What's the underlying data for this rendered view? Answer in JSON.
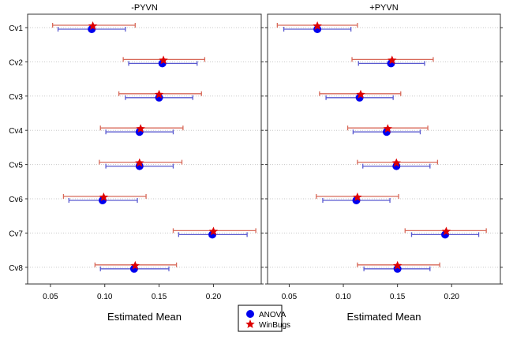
{
  "chart_data": [
    {
      "type": "scatter",
      "title": "-PYVN",
      "xlabel": "Estimated Mean",
      "ylabel": "",
      "xlim": [
        0.029,
        0.244
      ],
      "xticks": [
        "0.05",
        "0.10",
        "0.15",
        "0.20"
      ],
      "categories": [
        "Cv1",
        "Cv2",
        "Cv3",
        "Cv4",
        "Cv5",
        "Cv6",
        "Cv7",
        "Cv8"
      ],
      "grid": "horizontal dotted",
      "series": [
        {
          "name": "ANOVA",
          "marker": "circle",
          "color": "#0000ee",
          "ci_color": "#5a5ad0",
          "mean": [
            0.088,
            0.153,
            0.15,
            0.132,
            0.132,
            0.098,
            0.199,
            0.127
          ],
          "lower": [
            0.057,
            0.122,
            0.119,
            0.101,
            0.101,
            0.067,
            0.168,
            0.096
          ],
          "upper": [
            0.119,
            0.185,
            0.181,
            0.163,
            0.163,
            0.13,
            0.231,
            0.159
          ]
        },
        {
          "name": "WinBugs",
          "marker": "star",
          "color": "#dd0000",
          "ci_color": "#d86a5a",
          "mean": [
            0.089,
            0.154,
            0.15,
            0.133,
            0.132,
            0.099,
            0.2,
            0.128
          ],
          "lower": [
            0.052,
            0.117,
            0.113,
            0.096,
            0.095,
            0.062,
            0.163,
            0.091
          ],
          "upper": [
            0.128,
            0.192,
            0.189,
            0.172,
            0.171,
            0.138,
            0.239,
            0.166
          ]
        }
      ]
    },
    {
      "type": "scatter",
      "title": "+PYVN",
      "xlabel": "Estimated Mean",
      "ylabel": "",
      "xlim": [
        0.03,
        0.245
      ],
      "xticks": [
        "0.05",
        "0.10",
        "0.15",
        "0.20"
      ],
      "categories": [
        "Cv1",
        "Cv2",
        "Cv3",
        "Cv4",
        "Cv5",
        "Cv6",
        "Cv7",
        "Cv8"
      ],
      "grid": "horizontal dotted",
      "series": [
        {
          "name": "ANOVA",
          "marker": "circle",
          "color": "#0000ee",
          "ci_color": "#5a5ad0",
          "mean": [
            0.076,
            0.144,
            0.115,
            0.14,
            0.149,
            0.112,
            0.194,
            0.15
          ],
          "lower": [
            0.045,
            0.114,
            0.084,
            0.109,
            0.118,
            0.081,
            0.163,
            0.119
          ],
          "upper": [
            0.107,
            0.175,
            0.146,
            0.171,
            0.18,
            0.143,
            0.225,
            0.18
          ]
        },
        {
          "name": "WinBugs",
          "marker": "star",
          "color": "#dd0000",
          "ci_color": "#d86a5a",
          "mean": [
            0.076,
            0.145,
            0.116,
            0.141,
            0.149,
            0.113,
            0.195,
            0.15
          ],
          "lower": [
            0.039,
            0.108,
            0.078,
            0.104,
            0.113,
            0.075,
            0.157,
            0.113
          ],
          "upper": [
            0.113,
            0.183,
            0.153,
            0.178,
            0.187,
            0.151,
            0.232,
            0.189
          ]
        }
      ]
    }
  ],
  "legend": {
    "placement": "bottom-center",
    "items": [
      {
        "label": "ANOVA",
        "marker": "circle",
        "color": "#0000ee"
      },
      {
        "label": "WinBugs",
        "marker": "star",
        "color": "#dd0000"
      }
    ]
  }
}
